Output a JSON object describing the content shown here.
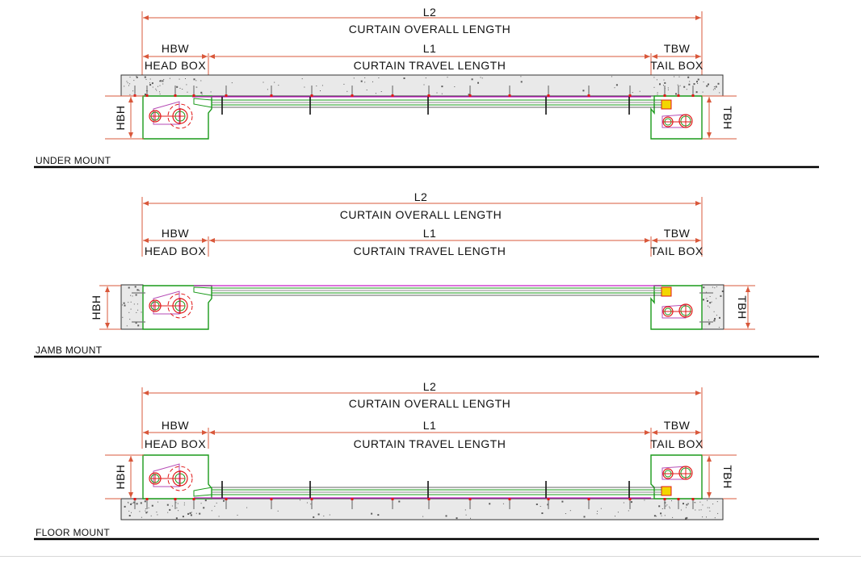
{
  "colors": {
    "dimension": "#d9583b",
    "frame": "#1a9a1a",
    "wheel": "#e01818",
    "track": "#c51ec5",
    "concrete_fill": "#e9e9e9",
    "concrete_speck": "#5a5a5a",
    "rule": "#000000",
    "bracket": "#f2d600"
  },
  "views": [
    {
      "id": "under",
      "mount_label": "UNDER MOUNT",
      "l2": "L2",
      "overall": "CURTAIN OVERALL LENGTH",
      "hbw": "HBW",
      "head_box": "HEAD BOX",
      "l1": "L1",
      "travel": "CURTAIN TRAVEL LENGTH",
      "tbw": "TBW",
      "tail_box": "TAIL BOX",
      "hbh": "HBH",
      "tbh": "TBH"
    },
    {
      "id": "jamb",
      "mount_label": "JAMB MOUNT",
      "l2": "L2",
      "overall": "CURTAIN OVERALL LENGTH",
      "hbw": "HBW",
      "head_box": "HEAD BOX",
      "l1": "L1",
      "travel": "CURTAIN TRAVEL LENGTH",
      "tbw": "TBW",
      "tail_box": "TAIL BOX",
      "hbh": "HBH",
      "tbh": "TBH"
    },
    {
      "id": "floor",
      "mount_label": "FLOOR MOUNT",
      "l2": "L2",
      "overall": "CURTAIN OVERALL LENGTH",
      "hbw": "HBW",
      "head_box": "HEAD BOX",
      "l1": "L1",
      "travel": "CURTAIN TRAVEL LENGTH",
      "tbw": "TBW",
      "tail_box": "TAIL BOX",
      "hbh": "HBH",
      "tbh": "TBH"
    }
  ]
}
